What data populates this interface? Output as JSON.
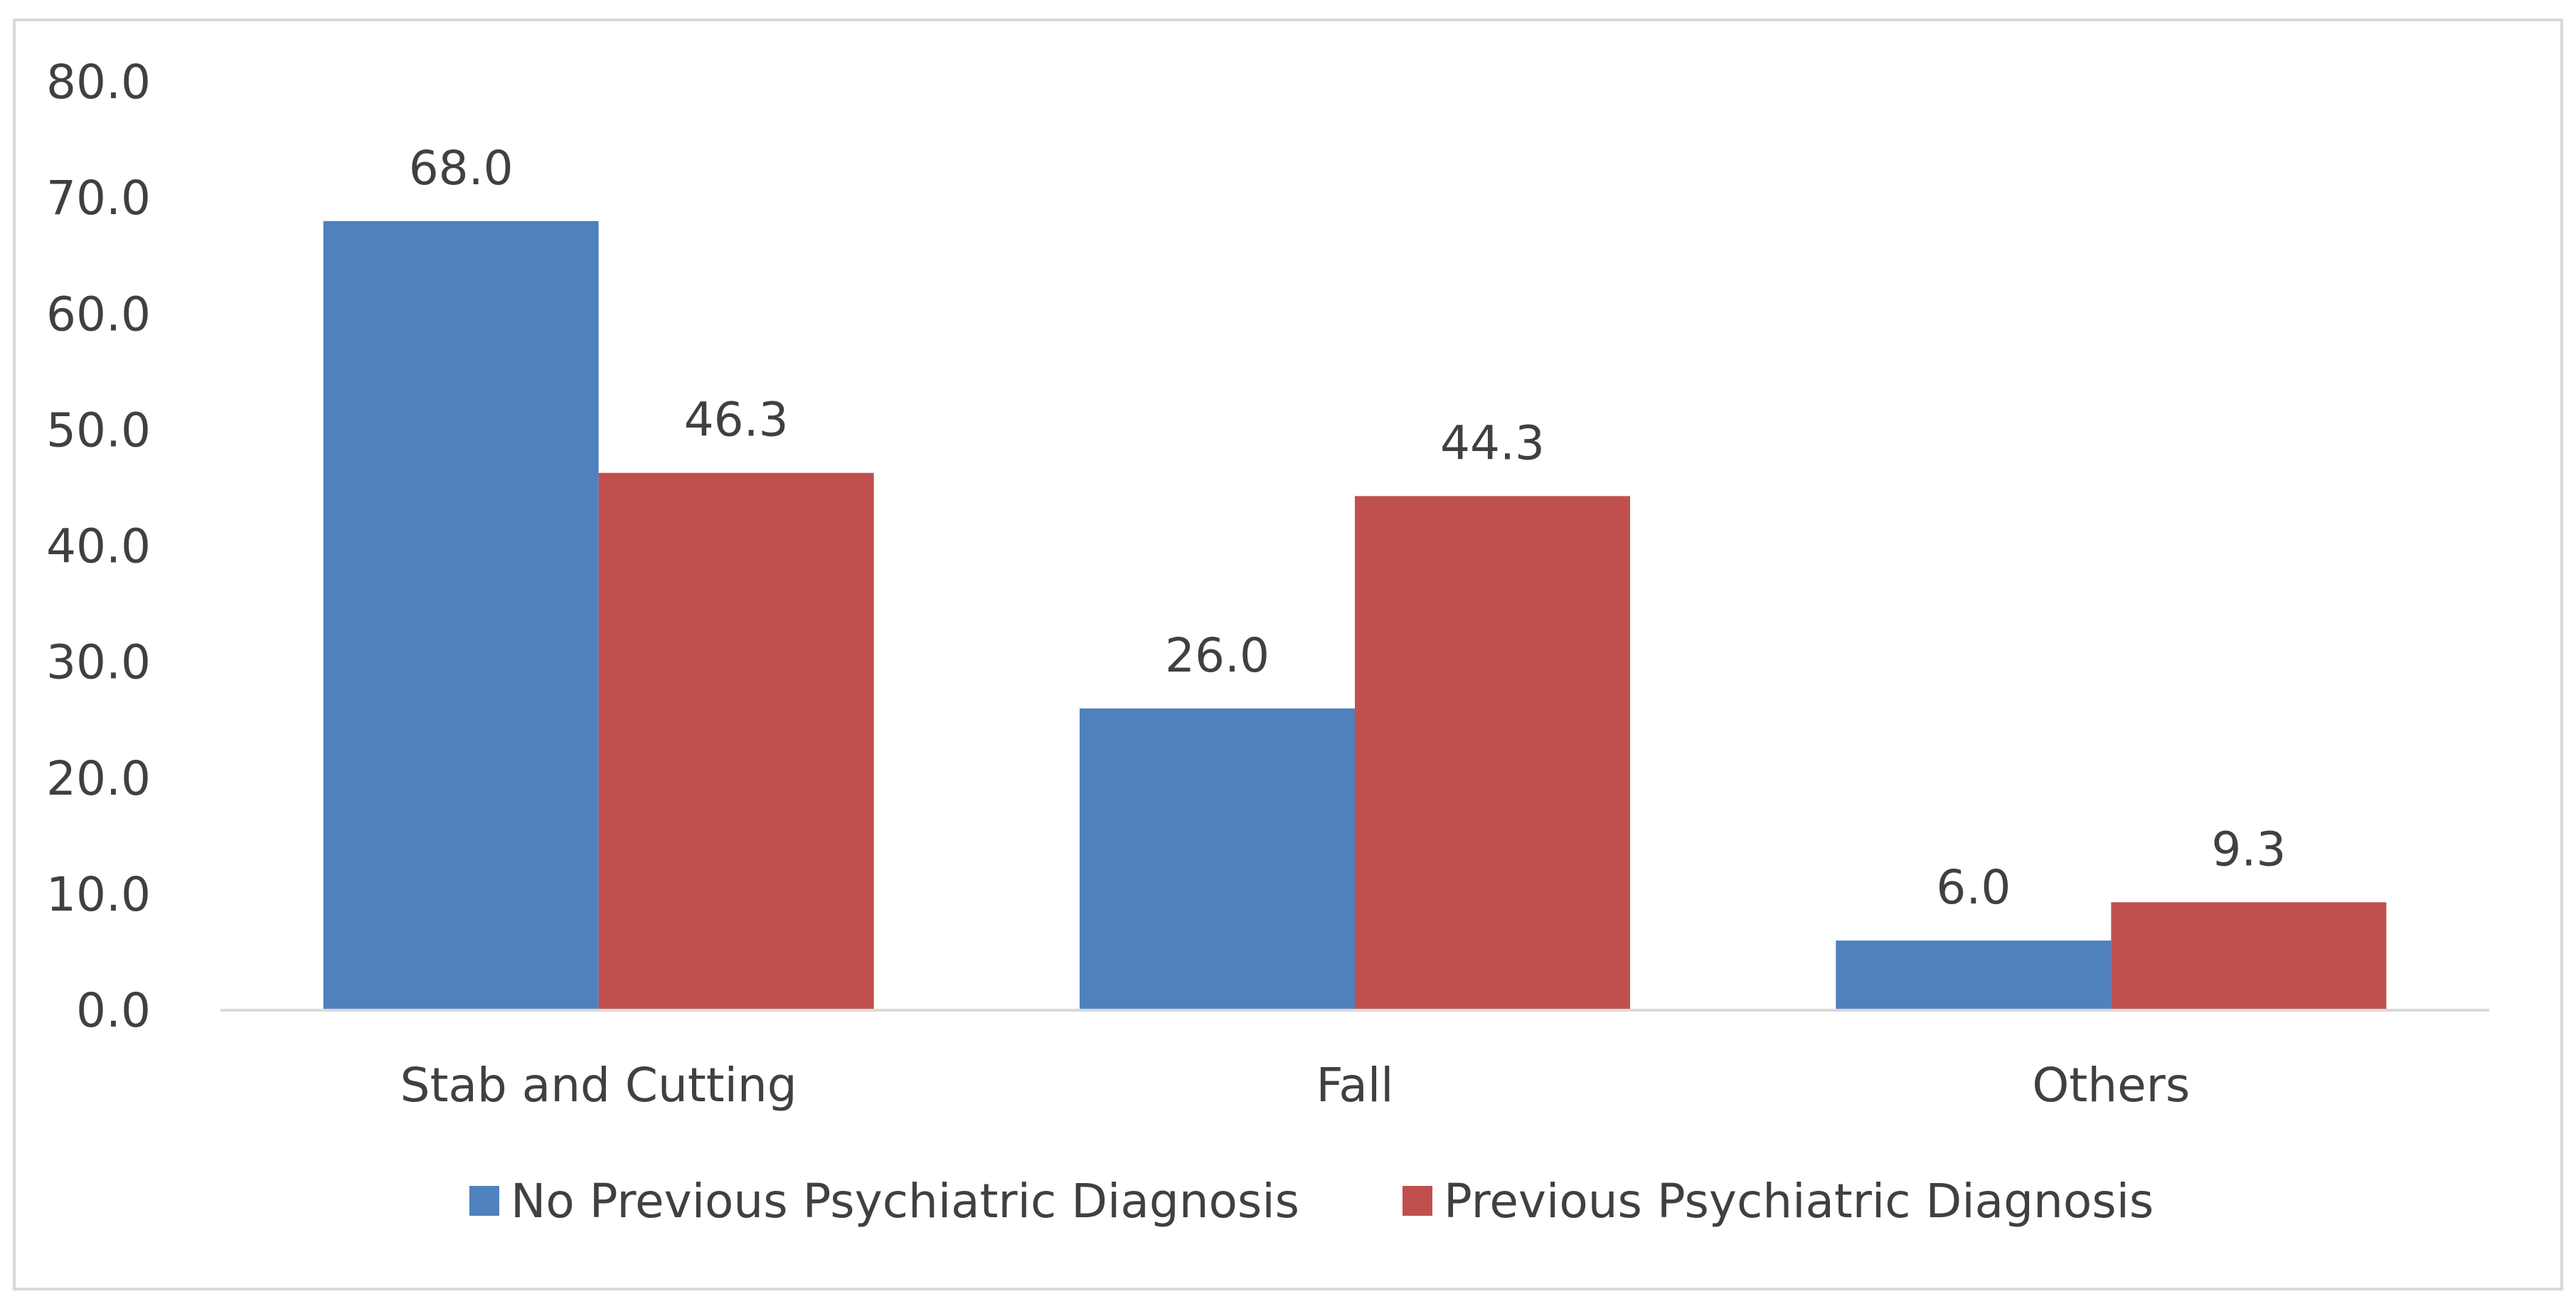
{
  "chart_data": {
    "type": "bar",
    "title": "",
    "xlabel": "",
    "ylabel": "",
    "categories": [
      "Stab and Cutting",
      "Fall",
      "Others"
    ],
    "series": [
      {
        "name": "No Previous Psychiatric Diagnosis",
        "values": [
          68.0,
          26.0,
          6.0
        ],
        "labels": [
          "68.0",
          "26.0",
          "6.0"
        ],
        "color": "#4f81bd"
      },
      {
        "name": "Previous Psychiatric Diagnosis",
        "values": [
          46.3,
          44.3,
          9.3
        ],
        "labels": [
          "46.3",
          "44.3",
          "9.3"
        ],
        "color": "#c0504d"
      }
    ],
    "ylim": [
      0,
      80
    ],
    "yticks": [
      0,
      10,
      20,
      30,
      40,
      50,
      60,
      70,
      80
    ],
    "ytick_labels": [
      "0.0",
      "10.0",
      "20.0",
      "30.0",
      "40.0",
      "50.0",
      "60.0",
      "70.0",
      "80.0"
    ],
    "grid": false,
    "legend_position": "bottom",
    "frame_color": "#d9d9d9",
    "axis_color": "#d9d9d9",
    "text_color": "#404040"
  }
}
